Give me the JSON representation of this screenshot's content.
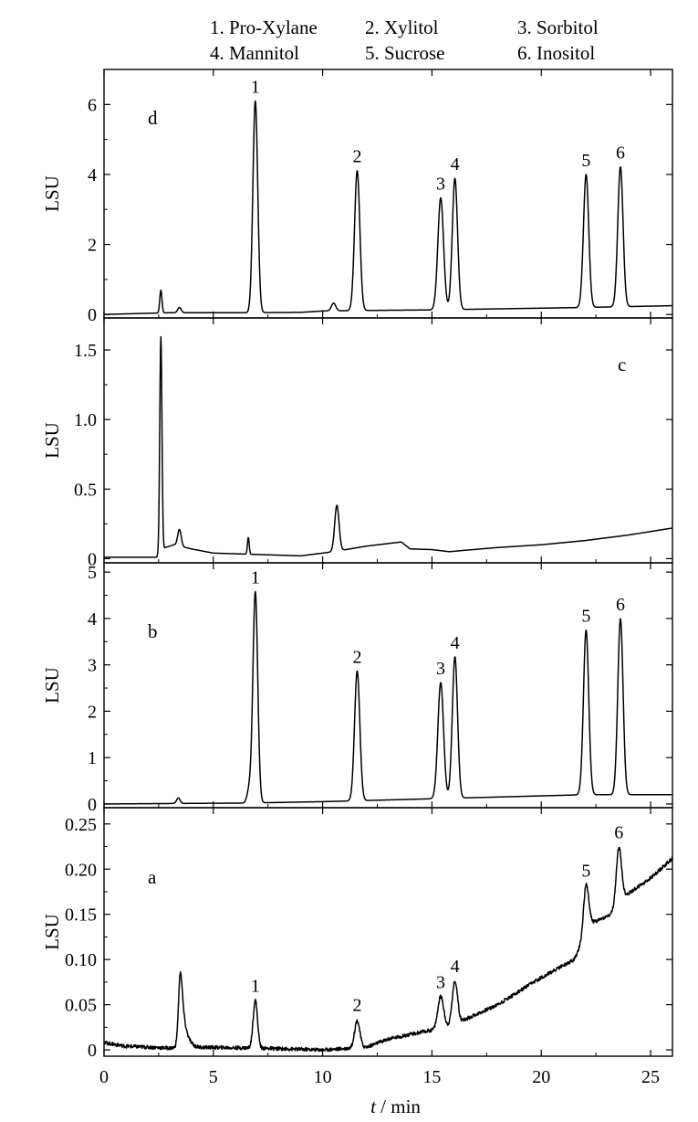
{
  "legend": [
    "1. Pro-Xylane",
    "2. Xylitol",
    "3. Sorbitol",
    "4. Mannitol",
    "5. Sucrose",
    "6. Inositol"
  ],
  "chart_data": {
    "type": "line",
    "x_label": "t / min",
    "x_italic_part": "t",
    "x_unit_part": " / min",
    "xlim": [
      0,
      26
    ],
    "x_ticks": [
      0,
      5,
      10,
      15,
      20,
      25
    ],
    "panels": [
      {
        "label": "d",
        "ylabel": "LSU",
        "ylim": [
          -0.1,
          7.0
        ],
        "y_ticks": [
          0,
          2,
          4,
          6
        ],
        "y_tick_labels": [
          "0",
          "2",
          "4",
          "6"
        ],
        "baseline": [
          [
            0,
            0
          ],
          [
            3,
            0.05
          ],
          [
            6.5,
            0.05
          ],
          [
            9,
            0.06
          ],
          [
            10,
            0.1
          ],
          [
            13,
            0.12
          ],
          [
            15,
            0.13
          ],
          [
            17,
            0.15
          ],
          [
            20,
            0.18
          ],
          [
            22,
            0.2
          ],
          [
            26,
            0.25
          ]
        ],
        "peaks": [
          {
            "id": "",
            "t": 2.6,
            "h": 0.65,
            "w": 0.05
          },
          {
            "id": "",
            "t": 3.45,
            "h": 0.15,
            "w": 0.08
          },
          {
            "id": "1",
            "t": 6.92,
            "h": 6.05,
            "w": 0.11
          },
          {
            "id": "",
            "t": 10.5,
            "h": 0.22,
            "w": 0.1
          },
          {
            "id": "2",
            "t": 11.58,
            "h": 4.0,
            "w": 0.12
          },
          {
            "id": "3",
            "t": 15.4,
            "h": 3.2,
            "w": 0.13
          },
          {
            "id": "4",
            "t": 16.05,
            "h": 3.75,
            "w": 0.12
          },
          {
            "id": "5",
            "t": 22.05,
            "h": 3.8,
            "w": 0.12
          },
          {
            "id": "6",
            "t": 23.62,
            "h": 4.0,
            "w": 0.12
          }
        ]
      },
      {
        "label": "c",
        "ylabel": "LSU",
        "ylim": [
          -0.03,
          1.73
        ],
        "y_ticks": [
          0,
          0.5,
          1.0,
          1.5
        ],
        "y_tick_labels": [
          "0",
          "0.5",
          "1.0",
          "1.5"
        ],
        "baseline": [
          [
            0,
            0.01
          ],
          [
            2.4,
            0.01
          ],
          [
            2.8,
            0.08
          ],
          [
            3.2,
            0.1
          ],
          [
            4,
            0.07
          ],
          [
            5,
            0.04
          ],
          [
            7,
            0.03
          ],
          [
            9,
            0.02
          ],
          [
            10.5,
            0.05
          ],
          [
            12,
            0.09
          ],
          [
            13.6,
            0.12
          ],
          [
            14,
            0.07
          ],
          [
            15,
            0.065
          ],
          [
            15.8,
            0.05
          ],
          [
            16.5,
            0.06
          ],
          [
            18,
            0.08
          ],
          [
            20,
            0.1
          ],
          [
            22,
            0.13
          ],
          [
            24,
            0.17
          ],
          [
            26,
            0.22
          ]
        ],
        "peaks": [
          {
            "id": "",
            "t": 2.6,
            "h": 1.55,
            "w": 0.05
          },
          {
            "id": "",
            "t": 3.45,
            "h": 0.12,
            "w": 0.08
          },
          {
            "id": "",
            "t": 6.6,
            "h": 0.12,
            "w": 0.04
          },
          {
            "id": "",
            "t": 10.65,
            "h": 0.33,
            "w": 0.1
          }
        ]
      },
      {
        "label": "b",
        "ylabel": "LSU",
        "ylim": [
          -0.08,
          5.2
        ],
        "y_ticks": [
          0,
          1,
          2,
          3,
          4,
          5
        ],
        "y_tick_labels": [
          "0",
          "1",
          "2",
          "3",
          "4",
          "5"
        ],
        "baseline": [
          [
            0,
            0
          ],
          [
            3,
            0.01
          ],
          [
            6.5,
            0.02
          ],
          [
            10,
            0.05
          ],
          [
            14,
            0.1
          ],
          [
            18,
            0.15
          ],
          [
            22,
            0.2
          ],
          [
            26,
            0.2
          ]
        ],
        "peaks": [
          {
            "id": "",
            "t": 3.4,
            "h": 0.12,
            "w": 0.08
          },
          {
            "id": "",
            "t": 6.65,
            "h": 0.3,
            "w": 0.1
          },
          {
            "id": "1",
            "t": 6.92,
            "h": 4.55,
            "w": 0.11
          },
          {
            "id": "2",
            "t": 11.58,
            "h": 2.8,
            "w": 0.12
          },
          {
            "id": "3",
            "t": 15.4,
            "h": 2.5,
            "w": 0.13
          },
          {
            "id": "4",
            "t": 16.05,
            "h": 3.05,
            "w": 0.12
          },
          {
            "id": "5",
            "t": 22.05,
            "h": 3.55,
            "w": 0.12
          },
          {
            "id": "6",
            "t": 23.62,
            "h": 3.8,
            "w": 0.12
          }
        ]
      },
      {
        "label": "a",
        "ylabel": "LSU",
        "ylim": [
          -0.007,
          0.268
        ],
        "y_ticks": [
          0,
          0.05,
          0.1,
          0.15,
          0.2,
          0.25
        ],
        "y_tick_labels": [
          "0",
          "0.05",
          "0.10",
          "0.15",
          "0.20",
          "0.25"
        ],
        "baseline": [
          [
            0,
            0.008
          ],
          [
            1,
            0.004
          ],
          [
            3,
            0.002
          ],
          [
            4,
            0.003
          ],
          [
            7,
            0.002
          ],
          [
            10,
            0.0
          ],
          [
            12,
            0.003
          ],
          [
            13,
            0.012
          ],
          [
            15,
            0.022
          ],
          [
            16,
            0.028
          ],
          [
            18,
            0.05
          ],
          [
            20,
            0.08
          ],
          [
            21.5,
            0.1
          ],
          [
            22.3,
            0.14
          ],
          [
            23.2,
            0.15
          ],
          [
            23.8,
            0.17
          ],
          [
            25,
            0.19
          ],
          [
            26,
            0.212
          ]
        ],
        "noise": 0.002,
        "peaks": [
          {
            "id": "",
            "t": 3.5,
            "h": 0.085,
            "w": 0.09,
            "tail": 0.35
          },
          {
            "id": "1",
            "t": 6.92,
            "h": 0.053,
            "w": 0.1
          },
          {
            "id": "2",
            "t": 11.58,
            "h": 0.03,
            "w": 0.12
          },
          {
            "id": "3",
            "t": 15.4,
            "h": 0.035,
            "w": 0.13
          },
          {
            "id": "4",
            "t": 16.05,
            "h": 0.048,
            "w": 0.12
          },
          {
            "id": "5",
            "t": 22.05,
            "h": 0.055,
            "w": 0.12
          },
          {
            "id": "6",
            "t": 23.55,
            "h": 0.062,
            "w": 0.12
          }
        ]
      }
    ]
  }
}
